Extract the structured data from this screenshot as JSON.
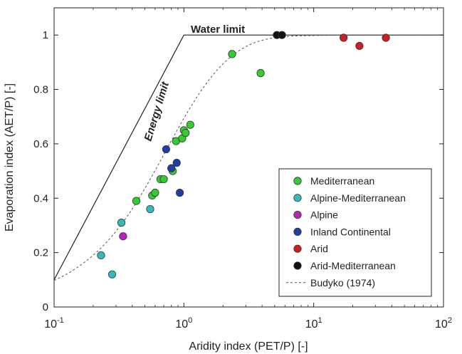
{
  "chart_data": {
    "type": "scatter",
    "xscale": "log",
    "xlim": [
      0.1,
      100
    ],
    "ylim": [
      0,
      1.1
    ],
    "xlabel": "Aridity index (PET/P) [-]",
    "ylabel": "Evaporation index (AET/P) [-]",
    "xticks": [
      0.1,
      1,
      10,
      100
    ],
    "xtick_labels": [
      {
        "base": "10",
        "exp": "-1"
      },
      {
        "base": "10",
        "exp": "0"
      },
      {
        "base": "10",
        "exp": "1"
      },
      {
        "base": "10",
        "exp": "2"
      }
    ],
    "yticks": [
      0,
      0.2,
      0.4,
      0.6,
      0.8,
      1
    ],
    "ytick_labels": [
      "0",
      "0.2",
      "0.4",
      "0.6",
      "0.8",
      "1"
    ],
    "grid": false,
    "legend_position": "bottom-right",
    "annotations": {
      "water_limit": "Water limit",
      "energy_limit": "Energy limit"
    },
    "series": [
      {
        "name": "Mediterranean",
        "color": "#33cc33",
        "points": [
          {
            "x": 0.43,
            "y": 0.39
          },
          {
            "x": 0.57,
            "y": 0.41
          },
          {
            "x": 0.6,
            "y": 0.42
          },
          {
            "x": 0.66,
            "y": 0.47
          },
          {
            "x": 0.7,
            "y": 0.47
          },
          {
            "x": 0.82,
            "y": 0.5
          },
          {
            "x": 0.87,
            "y": 0.61
          },
          {
            "x": 0.97,
            "y": 0.62
          },
          {
            "x": 1.0,
            "y": 0.65
          },
          {
            "x": 1.03,
            "y": 0.64
          },
          {
            "x": 1.12,
            "y": 0.67
          },
          {
            "x": 2.35,
            "y": 0.93
          },
          {
            "x": 3.9,
            "y": 0.86
          }
        ]
      },
      {
        "name": "Alpine-Mediterranean",
        "color": "#33bbbb",
        "points": [
          {
            "x": 0.23,
            "y": 0.19
          },
          {
            "x": 0.28,
            "y": 0.12
          },
          {
            "x": 0.33,
            "y": 0.31
          },
          {
            "x": 0.55,
            "y": 0.36
          }
        ]
      },
      {
        "name": "Alpine",
        "color": "#bb22bb",
        "points": [
          {
            "x": 0.34,
            "y": 0.26
          }
        ]
      },
      {
        "name": "Inland Continental",
        "color": "#1f3fa8",
        "points": [
          {
            "x": 0.73,
            "y": 0.58
          },
          {
            "x": 0.8,
            "y": 0.51
          },
          {
            "x": 0.88,
            "y": 0.53
          },
          {
            "x": 0.93,
            "y": 0.42
          }
        ]
      },
      {
        "name": "Arid",
        "color": "#cc1f1f",
        "points": [
          {
            "x": 17.0,
            "y": 0.99
          },
          {
            "x": 22.5,
            "y": 0.96
          },
          {
            "x": 36.0,
            "y": 0.99
          }
        ]
      },
      {
        "name": "Arid-Mediterranean",
        "color": "#111111",
        "points": [
          {
            "x": 5.2,
            "y": 1.0
          },
          {
            "x": 5.7,
            "y": 1.0
          }
        ]
      }
    ],
    "lines": [
      {
        "name": "Energy and water limit",
        "style": "solid",
        "color": "#222222",
        "legend": false
      },
      {
        "name": "Budyko (1974)",
        "style": "dashed",
        "color": "#555555",
        "legend": true
      }
    ]
  }
}
